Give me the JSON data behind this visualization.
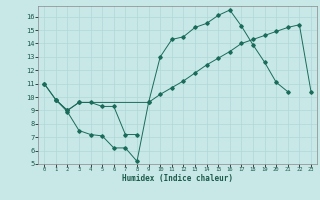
{
  "xlabel": "Humidex (Indice chaleur)",
  "bg_color": "#c8e8e8",
  "grid_color": "#b0d8d8",
  "line_color": "#1a6b5a",
  "xlim": [
    -0.5,
    23.5
  ],
  "ylim": [
    5,
    16.8
  ],
  "xticks": [
    0,
    1,
    2,
    3,
    4,
    5,
    6,
    7,
    8,
    9,
    10,
    11,
    12,
    13,
    14,
    15,
    16,
    17,
    18,
    19,
    20,
    21,
    22,
    23
  ],
  "yticks": [
    5,
    6,
    7,
    8,
    9,
    10,
    11,
    12,
    13,
    14,
    15,
    16
  ],
  "series": [
    {
      "x": [
        0,
        1,
        2,
        3,
        4,
        5,
        6,
        7,
        8,
        9,
        10,
        11,
        12,
        13,
        14,
        15,
        16,
        17,
        18,
        19,
        20,
        21
      ],
      "y": [
        11,
        9.8,
        8.9,
        7.5,
        7.2,
        7.1,
        6.2,
        6.2,
        5.2,
        9.6,
        13.0,
        14.3,
        14.5,
        15.2,
        15.5,
        16.1,
        16.5,
        15.3,
        13.9,
        12.6,
        11.1,
        10.4
      ]
    },
    {
      "x": [
        0,
        1,
        2,
        3,
        4,
        5,
        6,
        7,
        8
      ],
      "y": [
        11,
        9.8,
        9.0,
        9.6,
        9.6,
        9.3,
        9.3,
        7.2,
        7.2
      ]
    },
    {
      "x": [
        1,
        2,
        3,
        9,
        10,
        11,
        12,
        13,
        14,
        15,
        16,
        17,
        18,
        19,
        20,
        21,
        22,
        23
      ],
      "y": [
        9.8,
        9.0,
        9.6,
        9.6,
        10.2,
        10.7,
        11.2,
        11.8,
        12.4,
        12.9,
        13.4,
        14.0,
        14.3,
        14.6,
        14.9,
        15.2,
        15.4,
        10.4
      ]
    }
  ]
}
